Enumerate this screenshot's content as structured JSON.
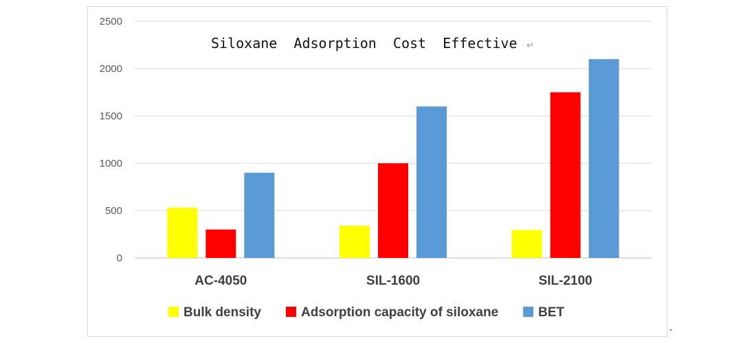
{
  "chart_data": {
    "type": "bar",
    "title": "Siloxane  Adsorption  Cost  Effective",
    "categories": [
      "AC-4050",
      "SIL-1600",
      "SIL-2100"
    ],
    "series": [
      {
        "name": "Bulk density",
        "color": "#ffff00",
        "values": [
          530,
          340,
          295
        ]
      },
      {
        "name": "Adsorption capacity of siloxane",
        "color": "#ff0000",
        "values": [
          300,
          1000,
          1750
        ]
      },
      {
        "name": "BET",
        "color": "#5b9bd5",
        "values": [
          900,
          1600,
          2100
        ]
      }
    ],
    "ylim": [
      0,
      2500
    ],
    "yticks": [
      0,
      500,
      1000,
      1500,
      2000,
      2500
    ],
    "grid": true,
    "legend_position": "bottom",
    "xlabel": "",
    "ylabel": ""
  }
}
